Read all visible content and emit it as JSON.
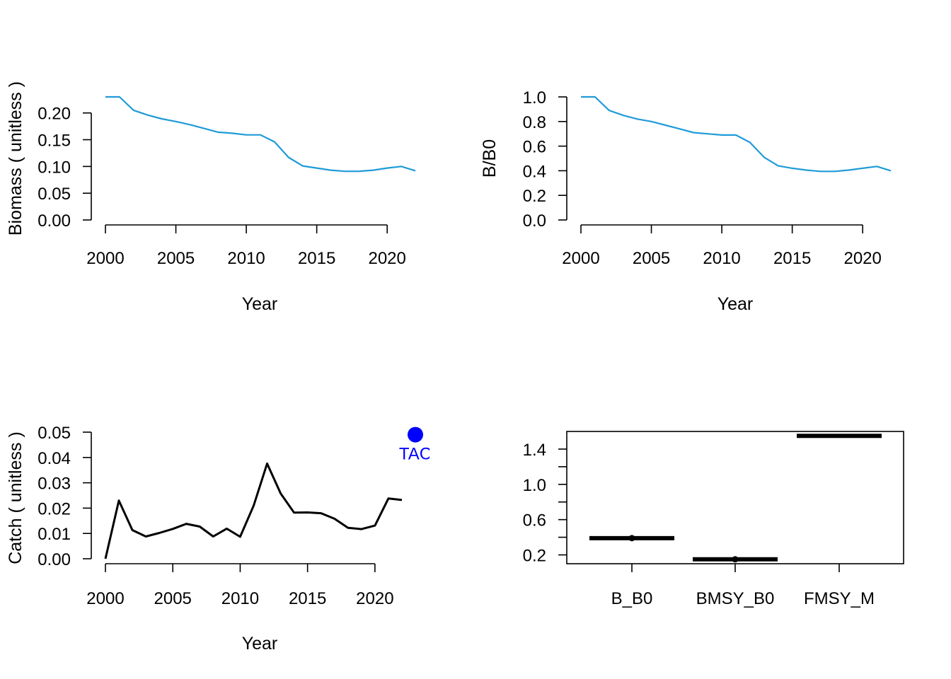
{
  "chart_data": [
    {
      "type": "line",
      "xlabel": "Year",
      "ylabel": "Biomass ( unitless )",
      "xlim": [
        2000,
        2022
      ],
      "ylim": [
        0,
        0.23
      ],
      "xticks": [
        "2000",
        "2005",
        "2010",
        "2015",
        "2020"
      ],
      "yticks": [
        "0.00",
        "0.05",
        "0.10",
        "0.15",
        "0.20"
      ],
      "x": [
        2000,
        2001,
        2002,
        2003,
        2004,
        2005,
        2006,
        2007,
        2008,
        2009,
        2010,
        2011,
        2012,
        2013,
        2014,
        2015,
        2016,
        2017,
        2018,
        2019,
        2020,
        2021,
        2022
      ],
      "series": [
        {
          "values": [
            0.23,
            0.23,
            0.205,
            0.196,
            0.189,
            0.184,
            0.178,
            0.171,
            0.164,
            0.162,
            0.159,
            0.159,
            0.146,
            0.117,
            0.101,
            0.097,
            0.093,
            0.091,
            0.091,
            0.093,
            0.097,
            0.1,
            0.092
          ],
          "color": "#1f9bd8"
        }
      ],
      "grid": false
    },
    {
      "type": "line",
      "xlabel": "Year",
      "ylabel": "B/B0",
      "xlim": [
        2000,
        2022
      ],
      "ylim": [
        0,
        1.0
      ],
      "xticks": [
        "2000",
        "2005",
        "2010",
        "2015",
        "2020"
      ],
      "yticks": [
        "0.0",
        "0.2",
        "0.4",
        "0.6",
        "0.8",
        "1.0"
      ],
      "x": [
        2000,
        2001,
        2002,
        2003,
        2004,
        2005,
        2006,
        2007,
        2008,
        2009,
        2010,
        2011,
        2012,
        2013,
        2014,
        2015,
        2016,
        2017,
        2018,
        2019,
        2020,
        2021,
        2022
      ],
      "series": [
        {
          "values": [
            1.0,
            1.0,
            0.89,
            0.85,
            0.82,
            0.8,
            0.77,
            0.74,
            0.71,
            0.7,
            0.69,
            0.69,
            0.63,
            0.51,
            0.44,
            0.42,
            0.405,
            0.395,
            0.395,
            0.405,
            0.42,
            0.435,
            0.4
          ],
          "color": "#1f9bd8"
        }
      ],
      "grid": false
    },
    {
      "type": "line",
      "xlabel": "Year",
      "ylabel": "Catch ( unitless )",
      "xlim": [
        2000,
        2023
      ],
      "ylim": [
        0,
        0.05
      ],
      "xticks": [
        "2000",
        "2005",
        "2010",
        "2015",
        "2020"
      ],
      "yticks": [
        "0.00",
        "0.01",
        "0.02",
        "0.03",
        "0.04",
        "0.05"
      ],
      "x": [
        2000,
        2001,
        2002,
        2003,
        2004,
        2005,
        2006,
        2007,
        2008,
        2009,
        2010,
        2011,
        2012,
        2013,
        2014,
        2015,
        2016,
        2017,
        2018,
        2019,
        2020,
        2021,
        2022
      ],
      "series": [
        {
          "values": [
            0.0,
            0.023,
            0.0113,
            0.0088,
            0.0102,
            0.0118,
            0.0138,
            0.0127,
            0.0088,
            0.0119,
            0.0087,
            0.021,
            0.0376,
            0.0258,
            0.0182,
            0.0183,
            0.018,
            0.0158,
            0.0122,
            0.0117,
            0.0131,
            0.0238,
            0.0232
          ],
          "color": "#000000"
        }
      ],
      "points": [
        {
          "x": 2023,
          "y": 0.049,
          "label": "TAC",
          "color": "#0000ff"
        }
      ],
      "grid": false
    },
    {
      "type": "box",
      "categories": [
        "B_B0",
        "BMSY_B0",
        "FMSY_M"
      ],
      "values": [
        0.39,
        0.15,
        1.55
      ],
      "ylim": [
        0.1,
        1.6
      ],
      "yticks": [
        "0.2",
        "0.6",
        "1.0",
        "1.4"
      ],
      "grid": false
    }
  ]
}
